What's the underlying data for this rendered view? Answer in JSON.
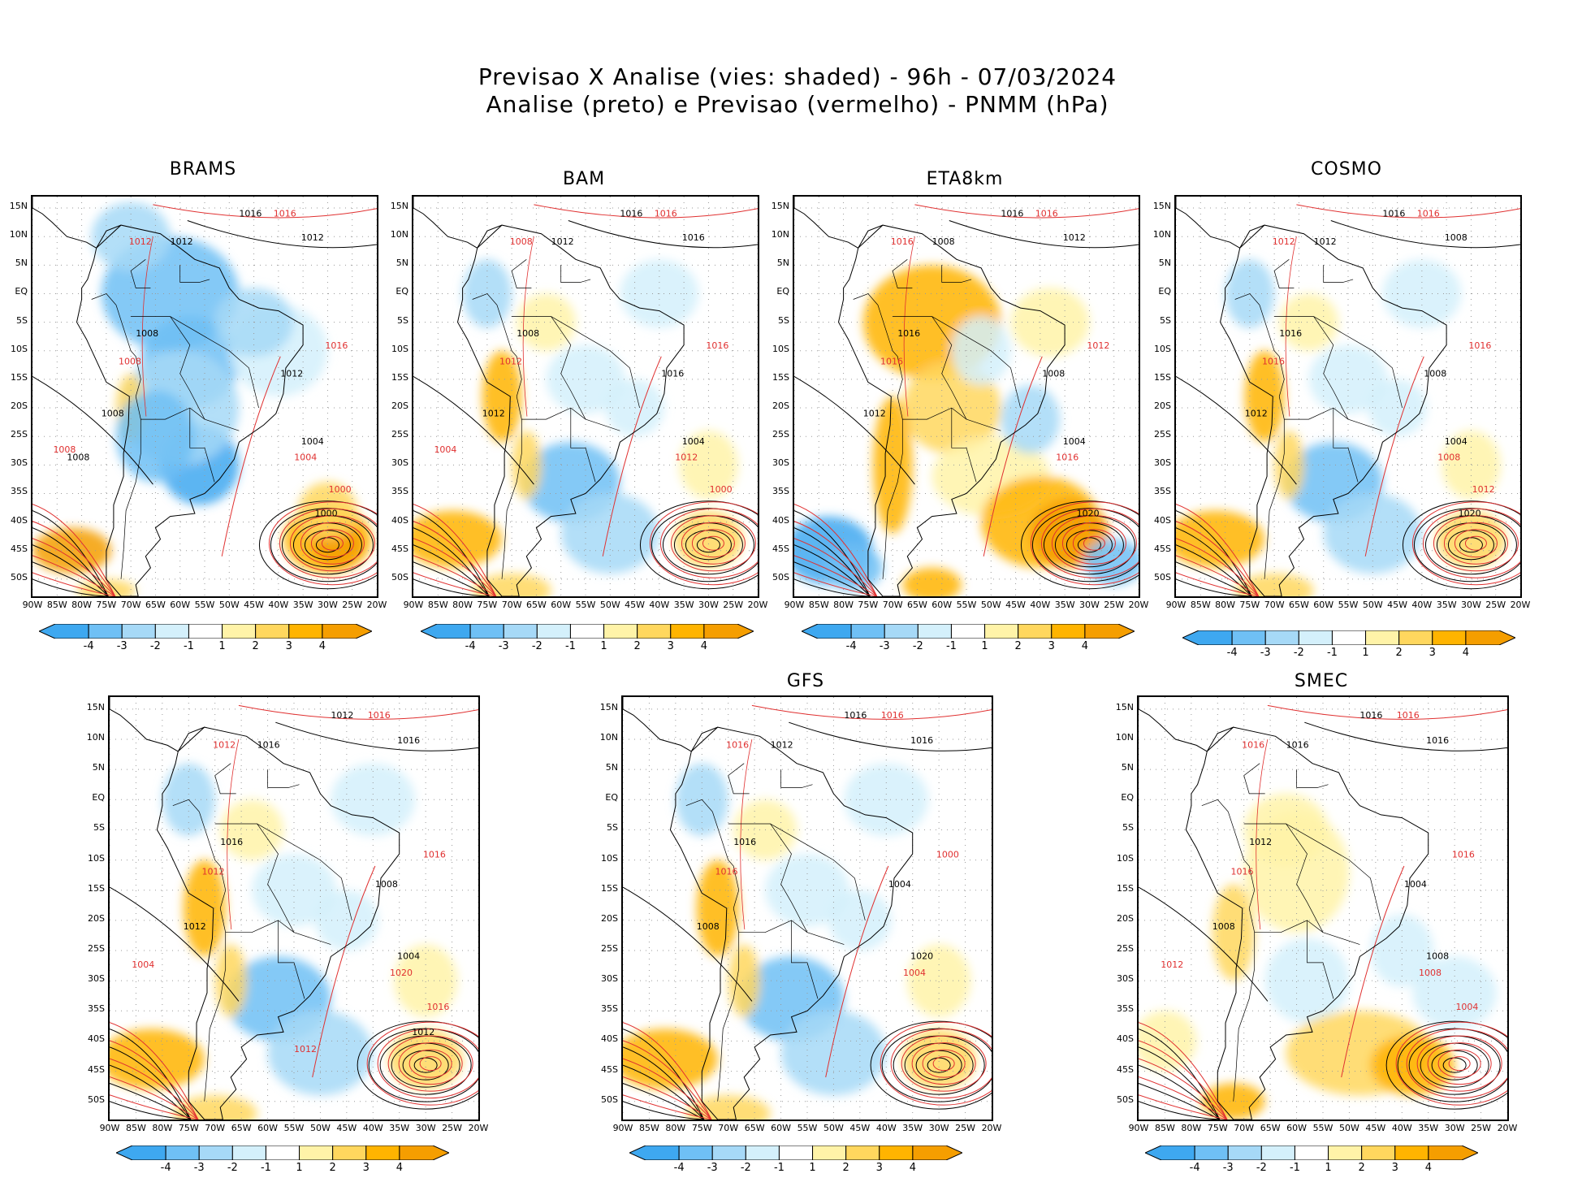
{
  "header": {
    "line1": "Previsao X Analise (vies: shaded) - 96h - 07/03/2024",
    "line2": "Analise (preto) e Previsao (vermelho) - PNMM (hPa)"
  },
  "axes": {
    "lat_labels": [
      "15N",
      "10N",
      "5N",
      "EQ",
      "5S",
      "10S",
      "15S",
      "20S",
      "25S",
      "30S",
      "35S",
      "40S",
      "45S",
      "50S"
    ],
    "lon_labels": [
      "90W",
      "85W",
      "80W",
      "75W",
      "70W",
      "65W",
      "60W",
      "55W",
      "50W",
      "45W",
      "40W",
      "35W",
      "30W",
      "25W",
      "20W"
    ]
  },
  "colorbar": {
    "labels": [
      "-4",
      "-3",
      "-2",
      "-1",
      "1",
      "2",
      "3",
      "4"
    ],
    "colors": [
      "#3ea8f0",
      "#6fc0f5",
      "#a6d9f7",
      "#d4f0fb",
      "#ffffff",
      "#fff3a8",
      "#ffd75e",
      "#ffb400",
      "#f59e00"
    ]
  },
  "colors": {
    "analysis_contour": "#000000",
    "forecast_contour": "#e03030",
    "gridline": "#9a9a9a"
  },
  "panels": [
    {
      "name": "BRAMS",
      "bias": "negative",
      "labels_black": [
        "1016",
        "1012",
        "1012",
        "1008",
        "1008",
        "1012",
        "1004",
        "1000",
        "1008"
      ],
      "labels_red": [
        "1016",
        "1012",
        "1008",
        "1016",
        "1004",
        "1000",
        "1008"
      ]
    },
    {
      "name": "BAM",
      "bias": "mixed",
      "labels_black": [
        "1016",
        "1016",
        "1012",
        "1008",
        "1012",
        "1016",
        "1004"
      ],
      "labels_red": [
        "1016",
        "1008",
        "1012",
        "1016",
        "1012",
        "1000",
        "1004"
      ]
    },
    {
      "name": "ETA8km",
      "bias": "positive",
      "labels_black": [
        "1016",
        "1012",
        "1008",
        "1016",
        "1012",
        "1008",
        "1004",
        "1020"
      ],
      "labels_red": [
        "1016",
        "1016",
        "1016",
        "1012",
        "1016"
      ]
    },
    {
      "name": "COSMO",
      "bias": "mixed",
      "labels_black": [
        "1016",
        "1008",
        "1012",
        "1016",
        "1012",
        "1008",
        "1004",
        "1020"
      ],
      "labels_red": [
        "1016",
        "1012",
        "1016",
        "1016",
        "1008",
        "1012"
      ]
    },
    {
      "name": "",
      "bias": "mixed",
      "labels_black": [
        "1012",
        "1016",
        "1016",
        "1016",
        "1012",
        "1008",
        "1004",
        "1012"
      ],
      "labels_red": [
        "1016",
        "1012",
        "1012",
        "1016",
        "1020",
        "1016",
        "1004",
        "1012"
      ]
    },
    {
      "name": "GFS",
      "bias": "mixed",
      "labels_black": [
        "1016",
        "1016",
        "1012",
        "1016",
        "1008",
        "1004",
        "1020"
      ],
      "labels_red": [
        "1016",
        "1016",
        "1016",
        "1000",
        "1004"
      ]
    },
    {
      "name": "SMEC",
      "bias": "positive-weak",
      "labels_black": [
        "1016",
        "1016",
        "1016",
        "1012",
        "1008",
        "1004",
        "1008"
      ],
      "labels_red": [
        "1016",
        "1016",
        "1016",
        "1016",
        "1008",
        "1004",
        "1012"
      ]
    }
  ]
}
